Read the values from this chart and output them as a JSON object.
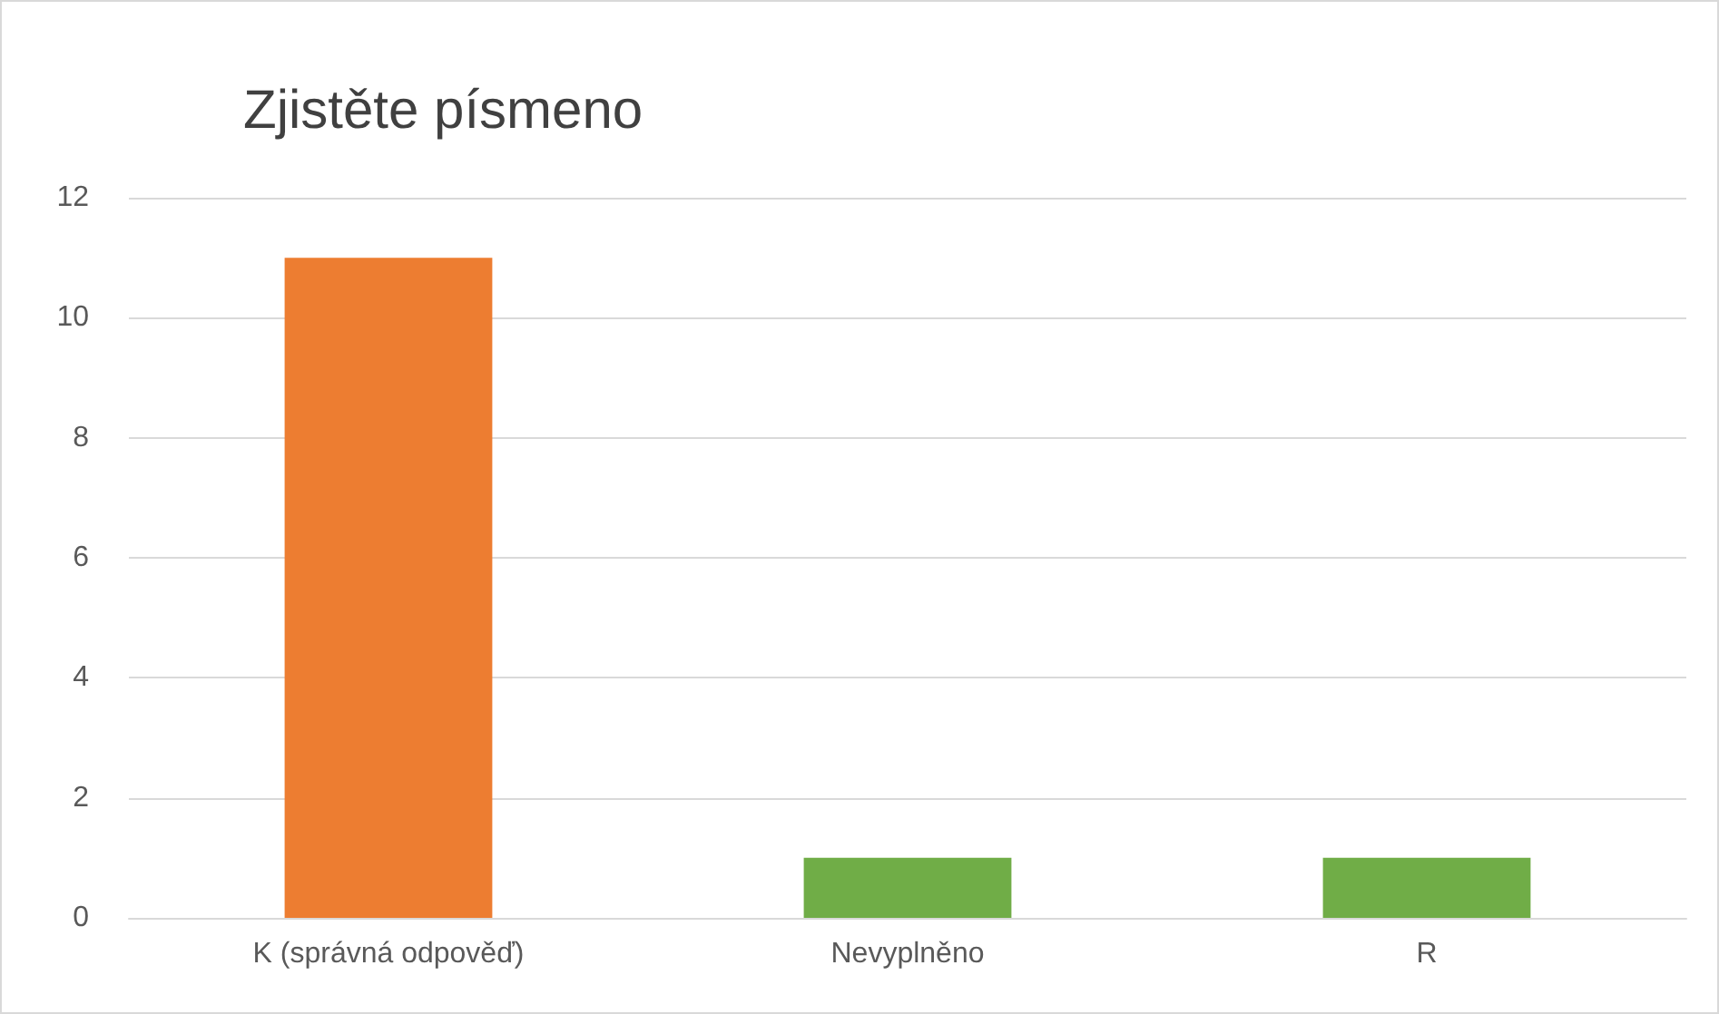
{
  "chart_data": {
    "type": "bar",
    "title": "Zjistěte písmeno",
    "categories": [
      "K (správná odpověď)",
      "Nevyplněno",
      "R"
    ],
    "values": [
      11,
      1,
      1
    ],
    "colors": [
      "#ed7d31",
      "#70ad47",
      "#70ad47"
    ],
    "ylim": [
      0,
      12
    ],
    "yticks": [
      0,
      2,
      4,
      6,
      8,
      10,
      12
    ],
    "grid": "y"
  }
}
